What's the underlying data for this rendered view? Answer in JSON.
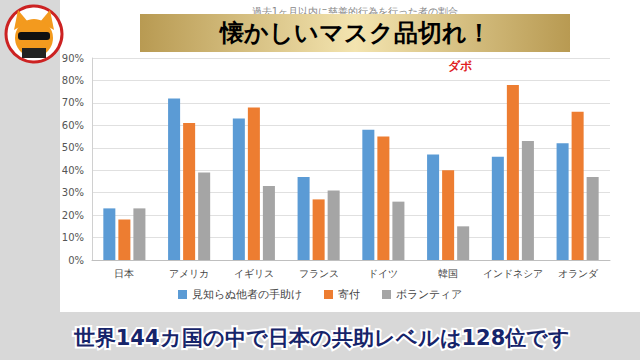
{
  "chart_data": {
    "type": "bar",
    "title": "過去1ヶ月以内に慈善的行為を行った者の割合",
    "categories": [
      "日本",
      "アメリカ",
      "イギリス",
      "フランス",
      "ドイツ",
      "韓国",
      "インドネシア",
      "オランダ"
    ],
    "series": [
      {
        "name": "見知らぬ他者の手助け",
        "color": "#5b9bd5",
        "values": [
          23,
          72,
          63,
          37,
          58,
          47,
          46,
          52
        ]
      },
      {
        "name": "寄付",
        "color": "#ed7d31",
        "values": [
          18,
          61,
          68,
          27,
          55,
          40,
          78,
          66
        ]
      },
      {
        "name": "ボランティア",
        "color": "#a5a5a5",
        "values": [
          23,
          39,
          33,
          31,
          26,
          15,
          53,
          37
        ]
      }
    ],
    "ylim": [
      0,
      90
    ],
    "yticks": [
      {
        "value": 0,
        "label": "0%"
      },
      {
        "value": 10,
        "label": "10%"
      },
      {
        "value": 20,
        "label": "20%"
      },
      {
        "value": 30,
        "label": "30%"
      },
      {
        "value": 40,
        "label": "40%"
      },
      {
        "value": 50,
        "label": "50%"
      },
      {
        "value": 60,
        "label": "60%"
      },
      {
        "value": 70,
        "label": "70%"
      },
      {
        "value": 80,
        "label": "80%"
      },
      {
        "value": 90,
        "label": "90%"
      }
    ],
    "grid": true,
    "legend": "bottom",
    "annotations": [
      "懐かしいマスク品切れ！",
      "ダボ",
      "世界144カ国の中で日本の共助レベルは128位です"
    ]
  }
}
